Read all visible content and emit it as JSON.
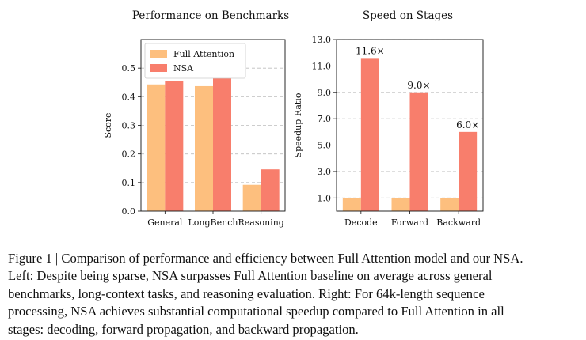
{
  "chart_data": [
    {
      "type": "bar",
      "title": "Performance on Benchmarks",
      "xlabel": "",
      "ylabel": "Score",
      "categories": [
        "General",
        "LongBench",
        "Reasoning"
      ],
      "series": [
        {
          "name": "Full Attention",
          "values": [
            0.443,
            0.437,
            0.092
          ],
          "color": "#FDBF7E"
        },
        {
          "name": "NSA",
          "values": [
            0.456,
            0.469,
            0.146
          ],
          "color": "#F87E6C"
        }
      ],
      "ylim": [
        0,
        0.6
      ],
      "yticks": [
        "0.0",
        "0.1",
        "0.2",
        "0.3",
        "0.4",
        "0.5"
      ],
      "grid": "y",
      "legend": "top-left"
    },
    {
      "type": "bar",
      "title": "Speed on Stages",
      "xlabel": "",
      "ylabel": "Speedup Ratio",
      "categories": [
        "Decode",
        "Forward",
        "Backward"
      ],
      "series": [
        {
          "name": "Full Attention",
          "values": [
            1.0,
            1.0,
            1.0
          ],
          "color": "#FDBF7E"
        },
        {
          "name": "NSA",
          "values": [
            11.6,
            9.0,
            6.0
          ],
          "color": "#F87E6C"
        }
      ],
      "data_labels": [
        "11.6×",
        "9.0×",
        "6.0×"
      ],
      "ylim": [
        0,
        13.0
      ],
      "yticks": [
        "1.0",
        "3.0",
        "5.0",
        "7.0",
        "9.0",
        "11.0",
        "13.0"
      ],
      "grid": "y",
      "legend": "none"
    }
  ],
  "caption": {
    "lines": [
      "Figure 1 | Comparison of performance and efficiency between Full Attention model and our NSA.",
      "Left: Despite being sparse, NSA surpasses Full Attention baseline on average across general",
      "benchmarks, long-context tasks, and reasoning evaluation. Right: For 64k-length sequence",
      "processing, NSA achieves substantial computational speedup compared to Full Attention in all",
      "stages: decoding, forward propagation, and backward propagation."
    ]
  }
}
